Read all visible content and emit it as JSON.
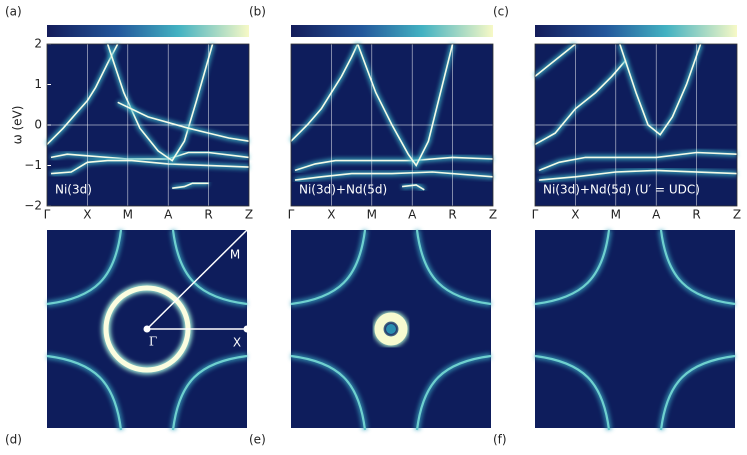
{
  "chart_data": [
    {
      "type": "spectral",
      "panel": "(a)",
      "ylabel": "ω (eV)",
      "ylim": [
        -2,
        2
      ],
      "yticks": [
        2,
        1,
        0,
        {
          "value": -1,
          "label": "−1"
        },
        {
          "value": -2,
          "label": "−2"
        }
      ],
      "categories": [
        "Γ",
        "X",
        "M",
        "A",
        "R",
        "Z"
      ],
      "annotation": "Ni(3d)"
    },
    {
      "type": "spectral",
      "panel": "(b)",
      "categories": [
        "Γ",
        "X",
        "M",
        "A",
        "R",
        "Z"
      ],
      "annotation": "Ni(3d)+Nd(5d)"
    },
    {
      "type": "spectral",
      "panel": "(c)",
      "categories": [
        "Γ",
        "X",
        "M",
        "A",
        "R",
        "Z"
      ],
      "annotation": "Ni(3d)+Nd(5d) (U′ = UDC)"
    },
    {
      "type": "fermi-surface",
      "panel": "(d)",
      "labels": [
        "M",
        "Γ",
        "X"
      ]
    },
    {
      "type": "fermi-surface",
      "panel": "(e)"
    },
    {
      "type": "fermi-surface",
      "panel": "(f)"
    }
  ]
}
